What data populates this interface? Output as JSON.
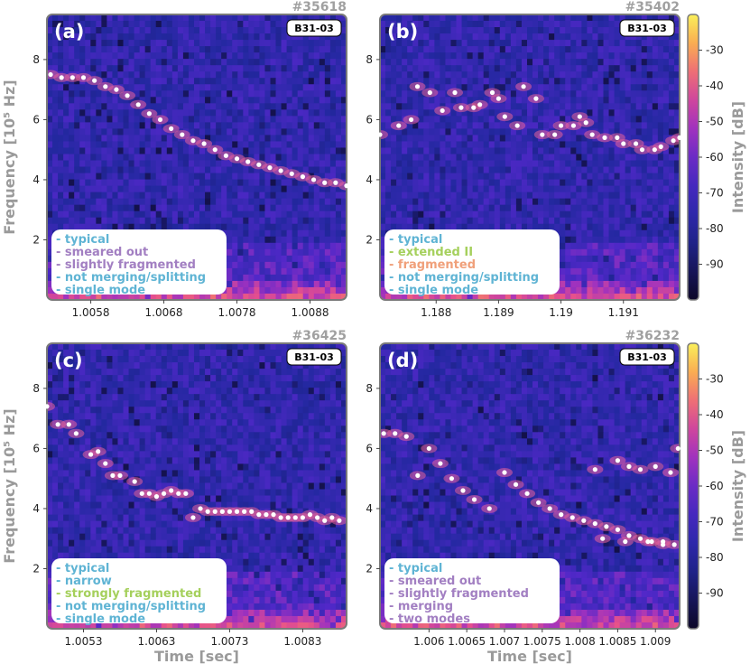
{
  "colors": {
    "typical": "#5fb4d4",
    "purple": "#a27fc2",
    "green": "#a5d05c",
    "orange": "#f0a07a",
    "dots": "#ffffff"
  },
  "chart_data": [
    {
      "type": "heatmap",
      "panel_label": "(a)",
      "shot": "#35618",
      "badge": "B31-03",
      "ylabel": "Frequency [10⁵ Hz]",
      "xlabel": "",
      "xlim": [
        1.0052,
        1.0093
      ],
      "ylim": [
        0,
        9.5
      ],
      "xticks": [
        1.0058,
        1.0068,
        1.0078,
        1.0088
      ],
      "xtick_labels": [
        "1.0058",
        "1.0068",
        "1.0078",
        "1.0088"
      ],
      "yticks": [
        2,
        4,
        6,
        8
      ],
      "legend": [
        {
          "text": "- typical",
          "color": "typical"
        },
        {
          "text": "- smeared out",
          "color": "purple"
        },
        {
          "text": "- slightly fragmented",
          "color": "purple"
        },
        {
          "text": "- not merging/splitting",
          "color": "typical"
        },
        {
          "text": "- single mode",
          "color": "typical"
        }
      ],
      "points": [
        [
          1.00525,
          7.5
        ],
        [
          1.0054,
          7.4
        ],
        [
          1.00555,
          7.4
        ],
        [
          1.0057,
          7.4
        ],
        [
          1.00585,
          7.3
        ],
        [
          1.006,
          7.1
        ],
        [
          1.00615,
          7.0
        ],
        [
          1.0063,
          6.8
        ],
        [
          1.00645,
          6.5
        ],
        [
          1.0066,
          6.2
        ],
        [
          1.00675,
          6.0
        ],
        [
          1.0069,
          5.7
        ],
        [
          1.00705,
          5.5
        ],
        [
          1.0072,
          5.3
        ],
        [
          1.00735,
          5.2
        ],
        [
          1.0075,
          5.0
        ],
        [
          1.00765,
          4.8
        ],
        [
          1.0078,
          4.7
        ],
        [
          1.00795,
          4.6
        ],
        [
          1.0081,
          4.5
        ],
        [
          1.00825,
          4.4
        ],
        [
          1.0084,
          4.3
        ],
        [
          1.00855,
          4.2
        ],
        [
          1.0087,
          4.1
        ],
        [
          1.00885,
          4.0
        ],
        [
          1.009,
          3.9
        ],
        [
          1.00915,
          3.9
        ],
        [
          1.0093,
          3.8
        ],
        [
          1.0094,
          3.8
        ],
        [
          1.0095,
          3.7
        ],
        [
          1.0096,
          3.6
        ],
        [
          1.0097,
          3.6
        ]
      ]
    },
    {
      "type": "heatmap",
      "panel_label": "(b)",
      "shot": "#35402",
      "badge": "B31-03",
      "ylabel": "",
      "xlabel": "",
      "xlim": [
        1.1871,
        1.1919
      ],
      "ylim": [
        0,
        9.5
      ],
      "xticks": [
        1.188,
        1.189,
        1.19,
        1.191
      ],
      "xtick_labels": [
        "1.188",
        "1.189",
        "1.19",
        "1.191"
      ],
      "yticks": [
        2,
        4,
        6,
        8
      ],
      "legend": [
        {
          "text": "- typical",
          "color": "typical"
        },
        {
          "text": "- extended II",
          "color": "green"
        },
        {
          "text": "- fragmented",
          "color": "orange"
        },
        {
          "text": "- not merging/splitting",
          "color": "typical"
        },
        {
          "text": "- single mode",
          "color": "typical"
        }
      ],
      "points": [
        [
          1.1871,
          5.5
        ],
        [
          1.1874,
          5.8
        ],
        [
          1.1876,
          6.0
        ],
        [
          1.1877,
          7.1
        ],
        [
          1.1879,
          6.9
        ],
        [
          1.1881,
          6.3
        ],
        [
          1.1883,
          6.9
        ],
        [
          1.1884,
          6.4
        ],
        [
          1.1886,
          6.4
        ],
        [
          1.1887,
          6.5
        ],
        [
          1.1889,
          6.9
        ],
        [
          1.189,
          6.7
        ],
        [
          1.1891,
          6.1
        ],
        [
          1.1893,
          5.8
        ],
        [
          1.1894,
          7.1
        ],
        [
          1.1896,
          6.7
        ],
        [
          1.1897,
          5.5
        ],
        [
          1.1899,
          5.5
        ],
        [
          1.19,
          5.8
        ],
        [
          1.1902,
          5.8
        ],
        [
          1.1903,
          6.1
        ],
        [
          1.1904,
          5.9
        ],
        [
          1.1905,
          5.5
        ],
        [
          1.1907,
          5.4
        ],
        [
          1.1909,
          5.4
        ],
        [
          1.191,
          5.2
        ],
        [
          1.1912,
          5.2
        ],
        [
          1.1913,
          5.0
        ],
        [
          1.1915,
          5.0
        ],
        [
          1.1916,
          5.1
        ],
        [
          1.1918,
          5.3
        ],
        [
          1.1919,
          5.4
        ]
      ]
    },
    {
      "type": "heatmap",
      "panel_label": "(c)",
      "shot": "#36425",
      "badge": "B31-03",
      "ylabel": "Frequency [10⁵ Hz]",
      "xlabel": "Time [sec]",
      "xlim": [
        1.0048,
        1.0089
      ],
      "ylim": [
        0,
        9.5
      ],
      "xticks": [
        1.0053,
        1.0063,
        1.0073,
        1.0083
      ],
      "xtick_labels": [
        "1.0053",
        "1.0063",
        "1.0073",
        "1.0083"
      ],
      "yticks": [
        2,
        4,
        6,
        8
      ],
      "legend": [
        {
          "text": "- typical",
          "color": "typical"
        },
        {
          "text": "- narrow",
          "color": "typical"
        },
        {
          "text": "- strongly fragmented",
          "color": "green"
        },
        {
          "text": "- not merging/splitting",
          "color": "typical"
        },
        {
          "text": "- single mode",
          "color": "typical"
        }
      ],
      "points": [
        [
          1.0048,
          7.4
        ],
        [
          1.00495,
          6.8
        ],
        [
          1.0051,
          6.8
        ],
        [
          1.0052,
          6.5
        ],
        [
          1.0054,
          5.8
        ],
        [
          1.0055,
          5.9
        ],
        [
          1.0056,
          5.5
        ],
        [
          1.0057,
          5.1
        ],
        [
          1.0058,
          5.1
        ],
        [
          1.006,
          4.9
        ],
        [
          1.0061,
          4.5
        ],
        [
          1.0062,
          4.5
        ],
        [
          1.0063,
          4.4
        ],
        [
          1.0064,
          4.5
        ],
        [
          1.0065,
          4.6
        ],
        [
          1.0066,
          4.5
        ],
        [
          1.0067,
          4.5
        ],
        [
          1.0068,
          3.7
        ],
        [
          1.0069,
          4.0
        ],
        [
          1.007,
          3.9
        ],
        [
          1.0071,
          3.9
        ],
        [
          1.0072,
          3.9
        ],
        [
          1.0073,
          3.9
        ],
        [
          1.0074,
          3.9
        ],
        [
          1.0075,
          3.9
        ],
        [
          1.0076,
          3.9
        ],
        [
          1.0077,
          3.8
        ],
        [
          1.0078,
          3.8
        ],
        [
          1.0079,
          3.8
        ],
        [
          1.008,
          3.7
        ],
        [
          1.0081,
          3.7
        ],
        [
          1.0082,
          3.7
        ],
        [
          1.0083,
          3.7
        ],
        [
          1.0084,
          3.8
        ],
        [
          1.0085,
          3.7
        ],
        [
          1.0086,
          3.6
        ],
        [
          1.0087,
          3.7
        ],
        [
          1.0088,
          3.6
        ]
      ]
    },
    {
      "type": "heatmap",
      "panel_label": "(d)",
      "shot": "#36232",
      "badge": "B31-03",
      "ylabel": "",
      "xlabel": "Time [sec]",
      "xlim": [
        1.00535,
        1.00932
      ],
      "ylim": [
        0,
        9.5
      ],
      "xticks": [
        1.006,
        1.0065,
        1.007,
        1.0075,
        1.008,
        1.0085,
        1.009
      ],
      "xtick_labels": [
        "1.006",
        "1.0065",
        "1.007",
        "1.0075",
        "1.008",
        "1.0085",
        "1.009"
      ],
      "yticks": [
        2,
        4,
        6,
        8
      ],
      "legend": [
        {
          "text": "- typical",
          "color": "typical"
        },
        {
          "text": "- smeared out",
          "color": "purple"
        },
        {
          "text": "- slightly fragmented",
          "color": "purple"
        },
        {
          "text": "- merging",
          "color": "purple"
        },
        {
          "text": "- two modes",
          "color": "purple"
        }
      ],
      "points": [
        [
          1.0054,
          6.5
        ],
        [
          1.00555,
          6.5
        ],
        [
          1.0057,
          6.4
        ],
        [
          1.00585,
          5.1
        ],
        [
          1.006,
          6.0
        ],
        [
          1.00615,
          5.5
        ],
        [
          1.0063,
          5.0
        ],
        [
          1.00645,
          4.6
        ],
        [
          1.0066,
          4.3
        ],
        [
          1.0068,
          4.0
        ],
        [
          1.007,
          5.2
        ],
        [
          1.00715,
          4.8
        ],
        [
          1.0073,
          4.5
        ],
        [
          1.00745,
          4.2
        ],
        [
          1.0076,
          4.0
        ],
        [
          1.00775,
          3.8
        ],
        [
          1.0079,
          3.7
        ],
        [
          1.00805,
          3.6
        ],
        [
          1.0082,
          3.5
        ],
        [
          1.00835,
          3.4
        ],
        [
          1.0085,
          3.3
        ],
        [
          1.00865,
          3.1
        ],
        [
          1.0088,
          3.0
        ],
        [
          1.00895,
          2.9
        ],
        [
          1.0091,
          2.8
        ],
        [
          1.00925,
          2.8
        ],
        [
          1.0082,
          5.3
        ],
        [
          1.0085,
          5.6
        ],
        [
          1.00865,
          5.4
        ],
        [
          1.0088,
          5.3
        ],
        [
          1.009,
          5.4
        ],
        [
          1.0092,
          5.2
        ],
        [
          1.0093,
          6.0
        ],
        [
          1.0083,
          3.0
        ],
        [
          1.0086,
          2.9
        ],
        [
          1.0089,
          2.9
        ],
        [
          1.0091,
          2.9
        ]
      ]
    }
  ],
  "colorbar": {
    "label": "Intensity [dB]",
    "ticks": [
      -30,
      -40,
      -50,
      -60,
      -70,
      -80,
      -90
    ],
    "range": [
      -100,
      -20
    ]
  }
}
